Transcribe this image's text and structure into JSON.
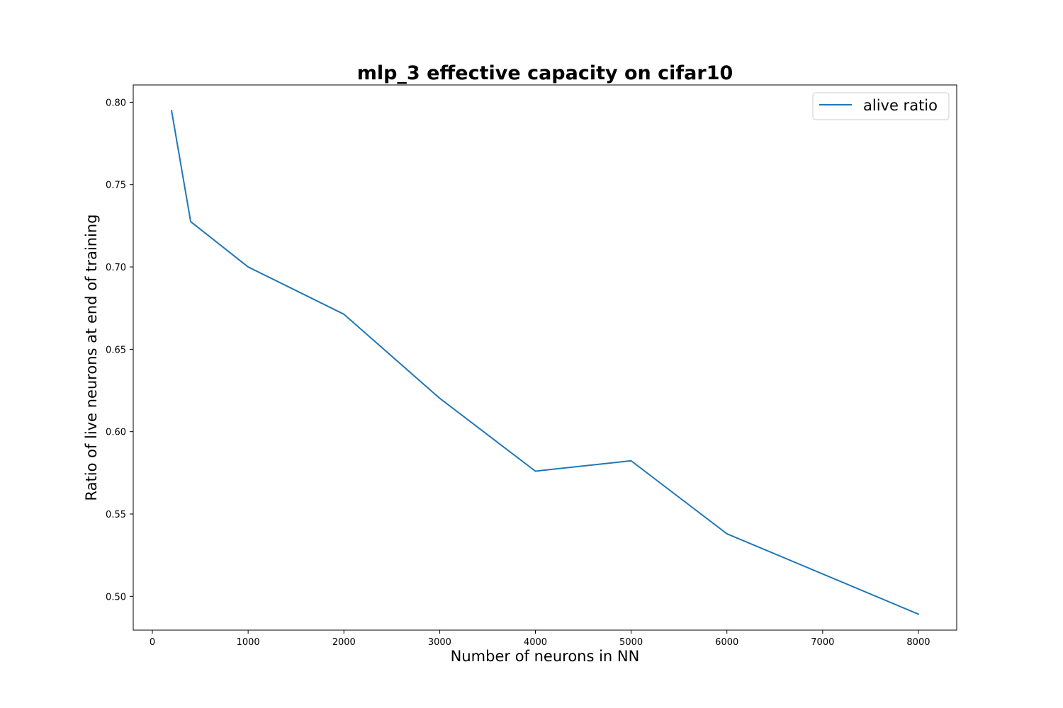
{
  "chart_data": {
    "type": "line",
    "title": "mlp_3 effective capacity on cifar10",
    "xlabel": "Number of neurons in NN",
    "ylabel": "Ratio of live neurons at end of training",
    "xlim": [
      -200,
      8400
    ],
    "ylim": [
      0.4795,
      0.8105
    ],
    "xticks": [
      0,
      1000,
      2000,
      3000,
      4000,
      5000,
      6000,
      7000,
      8000
    ],
    "xtick_labels": [
      "0",
      "1000",
      "2000",
      "3000",
      "4000",
      "5000",
      "6000",
      "7000",
      "8000"
    ],
    "yticks": [
      0.5,
      0.55,
      0.6,
      0.65,
      0.7,
      0.75,
      0.8
    ],
    "ytick_labels": [
      "0.50",
      "0.55",
      "0.60",
      "0.65",
      "0.70",
      "0.75",
      "0.80"
    ],
    "grid": false,
    "legend_position": "top-right",
    "series": [
      {
        "name": "alive ratio",
        "color": "#1f77b4",
        "x": [
          200,
          400,
          1000,
          2000,
          3000,
          4000,
          5000,
          6000,
          8000
        ],
        "y": [
          0.795,
          0.7275,
          0.7,
          0.6713,
          0.6203,
          0.576,
          0.5823,
          0.538,
          0.4892
        ]
      }
    ]
  }
}
